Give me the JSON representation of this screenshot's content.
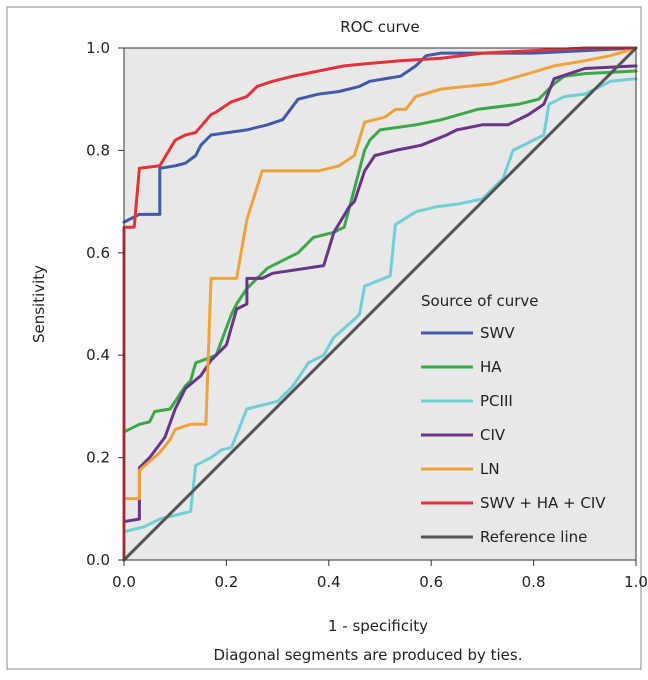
{
  "chart_data": {
    "type": "line",
    "title": "ROC curve",
    "xlabel": "1 - specificity",
    "ylabel": "Sensitivity",
    "footnote": "Diagonal segments are produced by ties.",
    "xlim": [
      0,
      1
    ],
    "ylim": [
      0,
      1
    ],
    "x_ticks": [
      "0.0",
      "0.2",
      "0.4",
      "0.6",
      "0.8",
      "1.0"
    ],
    "y_ticks": [
      "0.0",
      "0.2",
      "0.4",
      "0.6",
      "0.8",
      "1.0"
    ],
    "grid": false,
    "legend_title": "Source of curve",
    "legend_position": "bottom-right",
    "series": [
      {
        "name": "SWV",
        "color": "#3f5aa8",
        "points": [
          [
            0,
            0.66
          ],
          [
            0.03,
            0.675
          ],
          [
            0.07,
            0.675
          ],
          [
            0.07,
            0.765
          ],
          [
            0.1,
            0.77
          ],
          [
            0.12,
            0.775
          ],
          [
            0.14,
            0.79
          ],
          [
            0.15,
            0.81
          ],
          [
            0.17,
            0.83
          ],
          [
            0.24,
            0.84
          ],
          [
            0.28,
            0.85
          ],
          [
            0.31,
            0.86
          ],
          [
            0.34,
            0.9
          ],
          [
            0.38,
            0.91
          ],
          [
            0.42,
            0.915
          ],
          [
            0.46,
            0.925
          ],
          [
            0.48,
            0.935
          ],
          [
            0.54,
            0.945
          ],
          [
            0.57,
            0.965
          ],
          [
            0.59,
            0.985
          ],
          [
            0.62,
            0.99
          ],
          [
            0.7,
            0.99
          ],
          [
            0.8,
            0.99
          ],
          [
            0.9,
            0.995
          ],
          [
            1.0,
            1.0
          ]
        ]
      },
      {
        "name": "HA",
        "color": "#3aa847",
        "points": [
          [
            0,
            0.25
          ],
          [
            0.03,
            0.265
          ],
          [
            0.05,
            0.27
          ],
          [
            0.06,
            0.29
          ],
          [
            0.09,
            0.295
          ],
          [
            0.12,
            0.34
          ],
          [
            0.13,
            0.35
          ],
          [
            0.14,
            0.385
          ],
          [
            0.18,
            0.4
          ],
          [
            0.21,
            0.48
          ],
          [
            0.22,
            0.5
          ],
          [
            0.24,
            0.53
          ],
          [
            0.28,
            0.57
          ],
          [
            0.34,
            0.6
          ],
          [
            0.37,
            0.63
          ],
          [
            0.41,
            0.64
          ],
          [
            0.43,
            0.65
          ],
          [
            0.47,
            0.8
          ],
          [
            0.48,
            0.82
          ],
          [
            0.5,
            0.84
          ],
          [
            0.57,
            0.85
          ],
          [
            0.62,
            0.86
          ],
          [
            0.69,
            0.88
          ],
          [
            0.77,
            0.89
          ],
          [
            0.81,
            0.9
          ],
          [
            0.84,
            0.93
          ],
          [
            0.86,
            0.945
          ],
          [
            0.9,
            0.95
          ],
          [
            1.0,
            0.955
          ]
        ]
      },
      {
        "name": "PCIII",
        "color": "#6fcfd7",
        "points": [
          [
            0,
            0.055
          ],
          [
            0.04,
            0.065
          ],
          [
            0.07,
            0.08
          ],
          [
            0.13,
            0.095
          ],
          [
            0.14,
            0.185
          ],
          [
            0.17,
            0.2
          ],
          [
            0.19,
            0.215
          ],
          [
            0.21,
            0.22
          ],
          [
            0.24,
            0.295
          ],
          [
            0.3,
            0.31
          ],
          [
            0.33,
            0.34
          ],
          [
            0.36,
            0.385
          ],
          [
            0.39,
            0.4
          ],
          [
            0.41,
            0.435
          ],
          [
            0.45,
            0.47
          ],
          [
            0.46,
            0.48
          ],
          [
            0.47,
            0.535
          ],
          [
            0.52,
            0.555
          ],
          [
            0.53,
            0.655
          ],
          [
            0.57,
            0.68
          ],
          [
            0.61,
            0.69
          ],
          [
            0.65,
            0.695
          ],
          [
            0.7,
            0.705
          ],
          [
            0.74,
            0.745
          ],
          [
            0.76,
            0.8
          ],
          [
            0.82,
            0.83
          ],
          [
            0.83,
            0.89
          ],
          [
            0.85,
            0.9
          ],
          [
            0.86,
            0.905
          ],
          [
            0.9,
            0.91
          ],
          [
            0.95,
            0.935
          ],
          [
            1.0,
            0.94
          ]
        ]
      },
      {
        "name": "CIV",
        "color": "#6a3488",
        "points": [
          [
            0,
            0.075
          ],
          [
            0.03,
            0.08
          ],
          [
            0.03,
            0.18
          ],
          [
            0.05,
            0.2
          ],
          [
            0.08,
            0.24
          ],
          [
            0.1,
            0.295
          ],
          [
            0.12,
            0.335
          ],
          [
            0.15,
            0.36
          ],
          [
            0.17,
            0.39
          ],
          [
            0.2,
            0.42
          ],
          [
            0.22,
            0.49
          ],
          [
            0.24,
            0.5
          ],
          [
            0.24,
            0.55
          ],
          [
            0.27,
            0.55
          ],
          [
            0.29,
            0.56
          ],
          [
            0.39,
            0.575
          ],
          [
            0.41,
            0.64
          ],
          [
            0.44,
            0.69
          ],
          [
            0.45,
            0.7
          ],
          [
            0.47,
            0.76
          ],
          [
            0.49,
            0.79
          ],
          [
            0.53,
            0.8
          ],
          [
            0.58,
            0.81
          ],
          [
            0.63,
            0.83
          ],
          [
            0.65,
            0.84
          ],
          [
            0.7,
            0.85
          ],
          [
            0.75,
            0.85
          ],
          [
            0.79,
            0.87
          ],
          [
            0.82,
            0.89
          ],
          [
            0.84,
            0.94
          ],
          [
            0.9,
            0.96
          ],
          [
            1.0,
            0.965
          ]
        ]
      },
      {
        "name": "LN",
        "color": "#f0a23a",
        "points": [
          [
            0,
            0.12
          ],
          [
            0.03,
            0.12
          ],
          [
            0.03,
            0.175
          ],
          [
            0.07,
            0.21
          ],
          [
            0.09,
            0.235
          ],
          [
            0.1,
            0.255
          ],
          [
            0.13,
            0.265
          ],
          [
            0.16,
            0.265
          ],
          [
            0.17,
            0.55
          ],
          [
            0.22,
            0.55
          ],
          [
            0.24,
            0.665
          ],
          [
            0.27,
            0.76
          ],
          [
            0.38,
            0.76
          ],
          [
            0.42,
            0.77
          ],
          [
            0.45,
            0.79
          ],
          [
            0.47,
            0.855
          ],
          [
            0.51,
            0.865
          ],
          [
            0.53,
            0.88
          ],
          [
            0.55,
            0.88
          ],
          [
            0.57,
            0.905
          ],
          [
            0.62,
            0.92
          ],
          [
            0.72,
            0.93
          ],
          [
            0.79,
            0.95
          ],
          [
            0.84,
            0.965
          ],
          [
            0.9,
            0.975
          ],
          [
            0.95,
            0.985
          ],
          [
            1.0,
            1.0
          ]
        ]
      },
      {
        "name": "SWV + HA + CIV",
        "color": "#e3323a",
        "points": [
          [
            0,
            0.0
          ],
          [
            0,
            0.65
          ],
          [
            0.02,
            0.65
          ],
          [
            0.03,
            0.765
          ],
          [
            0.07,
            0.77
          ],
          [
            0.1,
            0.82
          ],
          [
            0.12,
            0.83
          ],
          [
            0.14,
            0.835
          ],
          [
            0.17,
            0.87
          ],
          [
            0.18,
            0.875
          ],
          [
            0.21,
            0.895
          ],
          [
            0.24,
            0.905
          ],
          [
            0.26,
            0.925
          ],
          [
            0.29,
            0.935
          ],
          [
            0.33,
            0.945
          ],
          [
            0.38,
            0.955
          ],
          [
            0.43,
            0.965
          ],
          [
            0.48,
            0.97
          ],
          [
            0.54,
            0.975
          ],
          [
            0.62,
            0.98
          ],
          [
            0.7,
            0.99
          ],
          [
            0.8,
            0.995
          ],
          [
            0.9,
            1.0
          ],
          [
            1.0,
            1.0
          ]
        ]
      },
      {
        "name": "Reference line",
        "color": "#555555",
        "points": [
          [
            0,
            0
          ],
          [
            1,
            1
          ]
        ]
      }
    ]
  }
}
